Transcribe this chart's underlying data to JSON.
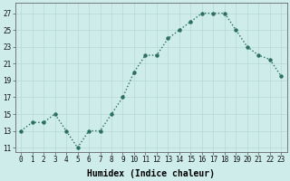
{
  "x": [
    0,
    1,
    2,
    3,
    4,
    5,
    6,
    7,
    8,
    9,
    10,
    11,
    12,
    13,
    14,
    15,
    16,
    17,
    18,
    19,
    20,
    21,
    22,
    23
  ],
  "y": [
    13,
    14,
    14,
    15,
    13,
    11,
    13,
    13,
    15,
    17,
    20,
    22,
    22,
    24,
    25,
    26,
    27,
    27,
    27,
    25,
    23,
    22,
    21.5,
    19.5
  ],
  "line_color": "#2d6e63",
  "marker": "o",
  "marker_size": 2.2,
  "bg_color": "#cdecea",
  "grid_color": "#b8d8d5",
  "xlabel": "Humidex (Indice chaleur)",
  "xlabel_fontsize": 7,
  "ylabel_ticks": [
    11,
    13,
    15,
    17,
    19,
    21,
    23,
    25,
    27
  ],
  "xlim": [
    -0.5,
    23.5
  ],
  "ylim": [
    10.5,
    28.2
  ],
  "xtick_labels": [
    "0",
    "1",
    "2",
    "3",
    "4",
    "5",
    "6",
    "7",
    "8",
    "9",
    "10",
    "11",
    "12",
    "13",
    "14",
    "15",
    "16",
    "17",
    "18",
    "19",
    "20",
    "21",
    "22",
    "23"
  ],
  "tick_fontsize": 5.5,
  "line_width": 1.0
}
